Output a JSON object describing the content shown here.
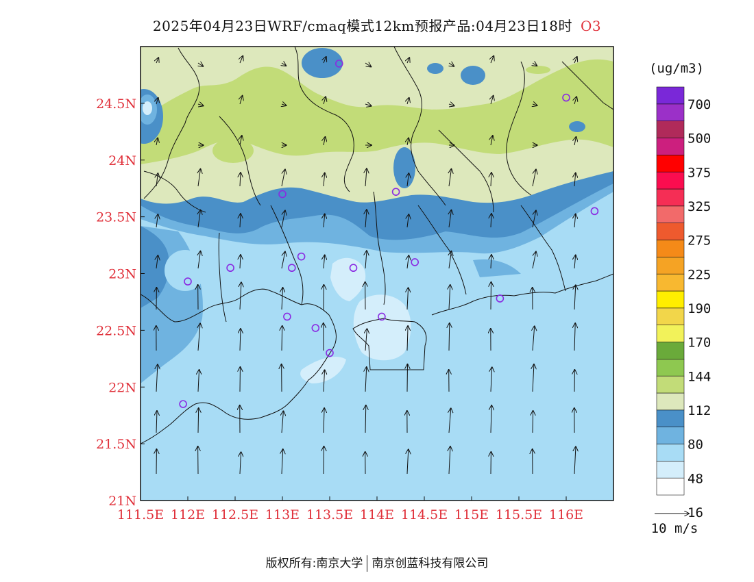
{
  "title": {
    "main": "2025年04月23日WRF/cmaq模式12km预报产品:04月23日18时",
    "species": "O3"
  },
  "map": {
    "lon_labels": [
      "111.5E",
      "112E",
      "112.5E",
      "113E",
      "113.5E",
      "114E",
      "114.5E",
      "115E",
      "115.5E",
      "116E"
    ],
    "lat_labels": [
      "24.5N",
      "24N",
      "23.5N",
      "23N",
      "22.5N",
      "22N",
      "21.5N",
      "21N"
    ],
    "lon_range": [
      111.5,
      116.5
    ],
    "lat_range": [
      21.0,
      25.0
    ],
    "stations": [
      [
        113.6,
        24.85
      ],
      [
        116.0,
        24.55
      ],
      [
        114.2,
        23.72
      ],
      [
        113.0,
        23.7
      ],
      [
        116.3,
        23.55
      ],
      [
        113.2,
        23.15
      ],
      [
        112.45,
        23.05
      ],
      [
        113.1,
        23.05
      ],
      [
        113.75,
        23.05
      ],
      [
        114.4,
        23.1
      ],
      [
        112.0,
        22.93
      ],
      [
        115.3,
        22.78
      ],
      [
        113.05,
        22.62
      ],
      [
        113.35,
        22.52
      ],
      [
        114.05,
        22.62
      ],
      [
        113.5,
        22.3
      ],
      [
        111.95,
        21.85
      ]
    ]
  },
  "colorbar": {
    "unit": "(ug/m3)",
    "labels": [
      "700",
      "500",
      "375",
      "325",
      "275",
      "225",
      "190",
      "170",
      "144",
      "112",
      "80",
      "48",
      "16"
    ],
    "colors": [
      "#ffffff",
      "#d4eefb",
      "#a8dcf5",
      "#6fb3e0",
      "#4a90c8",
      "#dde8bc",
      "#c2dc78",
      "#8ec850",
      "#6aaa3a",
      "#f2f25a",
      "#f2d64a",
      "#ffee00",
      "#f8b830",
      "#f5a324",
      "#f58a18",
      "#ee5a2e",
      "#f26a6a",
      "#f52e55",
      "#fb0d4f",
      "#ff0000",
      "#cc1f7e",
      "#b02a5a",
      "#9b30c8",
      "#7a28d8"
    ],
    "wind_scale_label": "10 m/s"
  },
  "footer": {
    "left": "版权所有:南京大学",
    "right": "南京创蓝科技有限公司"
  }
}
